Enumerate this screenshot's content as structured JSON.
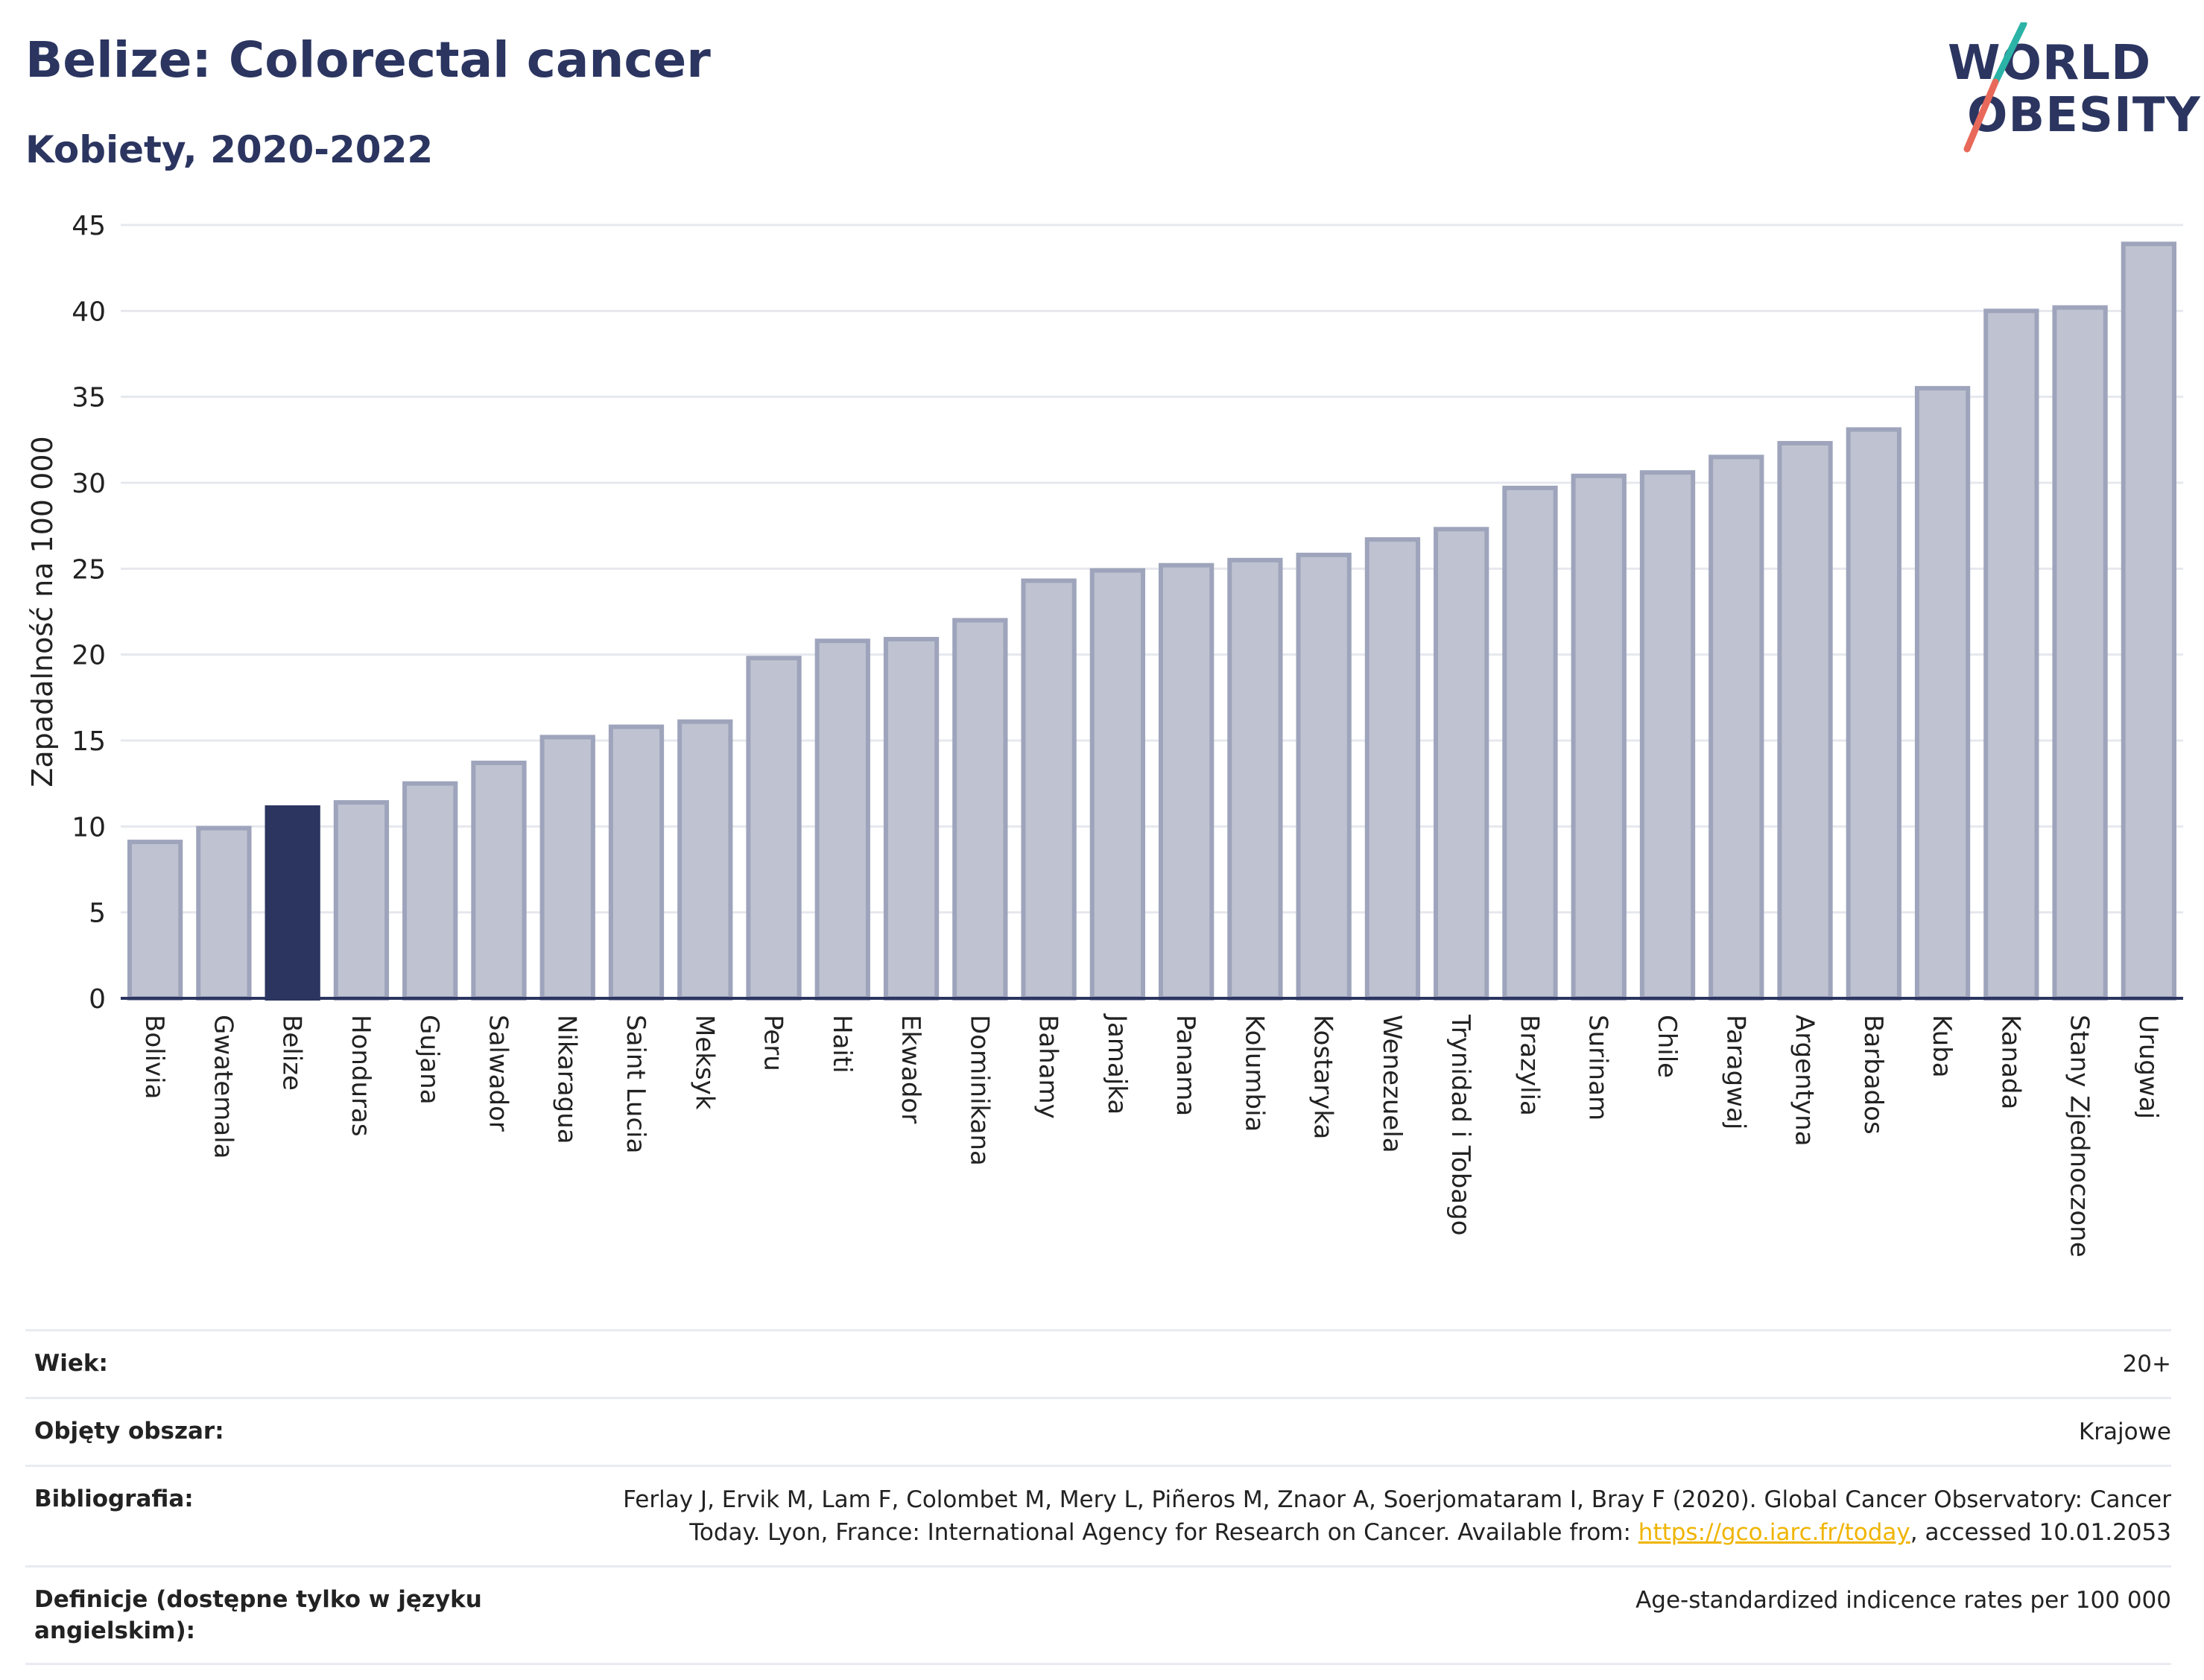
{
  "header": {
    "title": "Belize: Colorectal cancer",
    "subtitle": "Kobiety, 2020-2022"
  },
  "logo": {
    "line1": "WORLD",
    "line2": "OBESITY",
    "slash_colors": [
      "#2ab3a6",
      "#e8695a"
    ]
  },
  "colors": {
    "highlight_bar": "#2b3560",
    "default_bar": "#bfc3d1",
    "bar_outline": "#9ea4bb",
    "grid": "#e6e8ee",
    "axis": "#2b3560"
  },
  "chart_data": {
    "type": "bar",
    "ylabel": "Zapadalność na 100 000",
    "ylim": [
      0,
      45
    ],
    "yticks": [
      0,
      5,
      10,
      15,
      20,
      25,
      30,
      35,
      40,
      45
    ],
    "grid": true,
    "highlight": "Belize",
    "categories": [
      "Bolivia",
      "Gwatemala",
      "Belize",
      "Honduras",
      "Gujana",
      "Salwador",
      "Nikaragua",
      "Saint Lucia",
      "Meksyk",
      "Peru",
      "Haiti",
      "Ekwador",
      "Dominikana",
      "Bahamy",
      "Jamajka",
      "Panama",
      "Kolumbia",
      "Kostaryka",
      "Wenezuela",
      "Trynidad i Tobago",
      "Brazylia",
      "Surinam",
      "Chile",
      "Paragwaj",
      "Argentyna",
      "Barbados",
      "Kuba",
      "Kanada",
      "Stany Zjednoczone",
      "Urugwaj"
    ],
    "values": [
      9.1,
      9.9,
      11.1,
      11.4,
      12.5,
      13.7,
      15.2,
      15.8,
      16.1,
      19.8,
      20.8,
      20.9,
      22.0,
      24.3,
      24.9,
      25.2,
      25.5,
      25.8,
      26.7,
      27.3,
      29.7,
      30.4,
      30.6,
      31.5,
      32.3,
      33.1,
      35.5,
      40.0,
      40.2,
      43.9
    ]
  },
  "info": {
    "rows": [
      {
        "label": "Wiek:",
        "value": "20+"
      },
      {
        "label": "Objęty obszar:",
        "value": "Krajowe"
      },
      {
        "label": "Bibliografia:",
        "value_before": "Ferlay J, Ervik M, Lam F, Colombet M, Mery L, Piñeros M, Znaor A, Soerjomataram I, Bray F (2020). Global Cancer Observatory: Cancer Today. Lyon, France: International Agency for Research on Cancer. Available from: ",
        "link": "https://gco.iarc.fr/today",
        "value_after": ", accessed 10.01.2053"
      },
      {
        "label": "Definicje (dostępne tylko w języku angielskim):",
        "value": "Age-standardized indicence rates per 100 000"
      }
    ]
  }
}
